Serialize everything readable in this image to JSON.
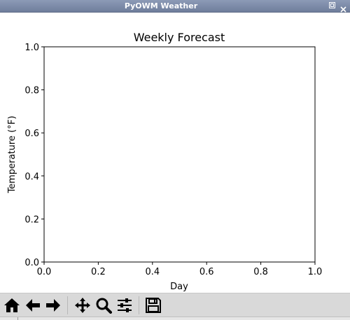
{
  "window": {
    "title": "PyOWM Weather"
  },
  "toolbar": {
    "buttons": [
      {
        "icon": "home-icon"
      },
      {
        "icon": "back-arrow-icon"
      },
      {
        "icon": "forward-arrow-icon"
      },
      {
        "icon": "pan-icon"
      },
      {
        "icon": "zoom-icon"
      },
      {
        "icon": "configure-subplots-icon"
      },
      {
        "icon": "save-icon"
      }
    ]
  },
  "chart_data": {
    "type": "line",
    "title": "Weekly Forecast",
    "xlabel": "Day",
    "ylabel": "Temperature (°F)",
    "xlim": [
      0,
      1
    ],
    "ylim": [
      0,
      1
    ],
    "xticks": [
      "0.0",
      "0.2",
      "0.4",
      "0.6",
      "0.8",
      "1.0"
    ],
    "yticks": [
      "0.0",
      "0.2",
      "0.4",
      "0.6",
      "0.8",
      "1.0"
    ],
    "series": [],
    "grid": false
  }
}
